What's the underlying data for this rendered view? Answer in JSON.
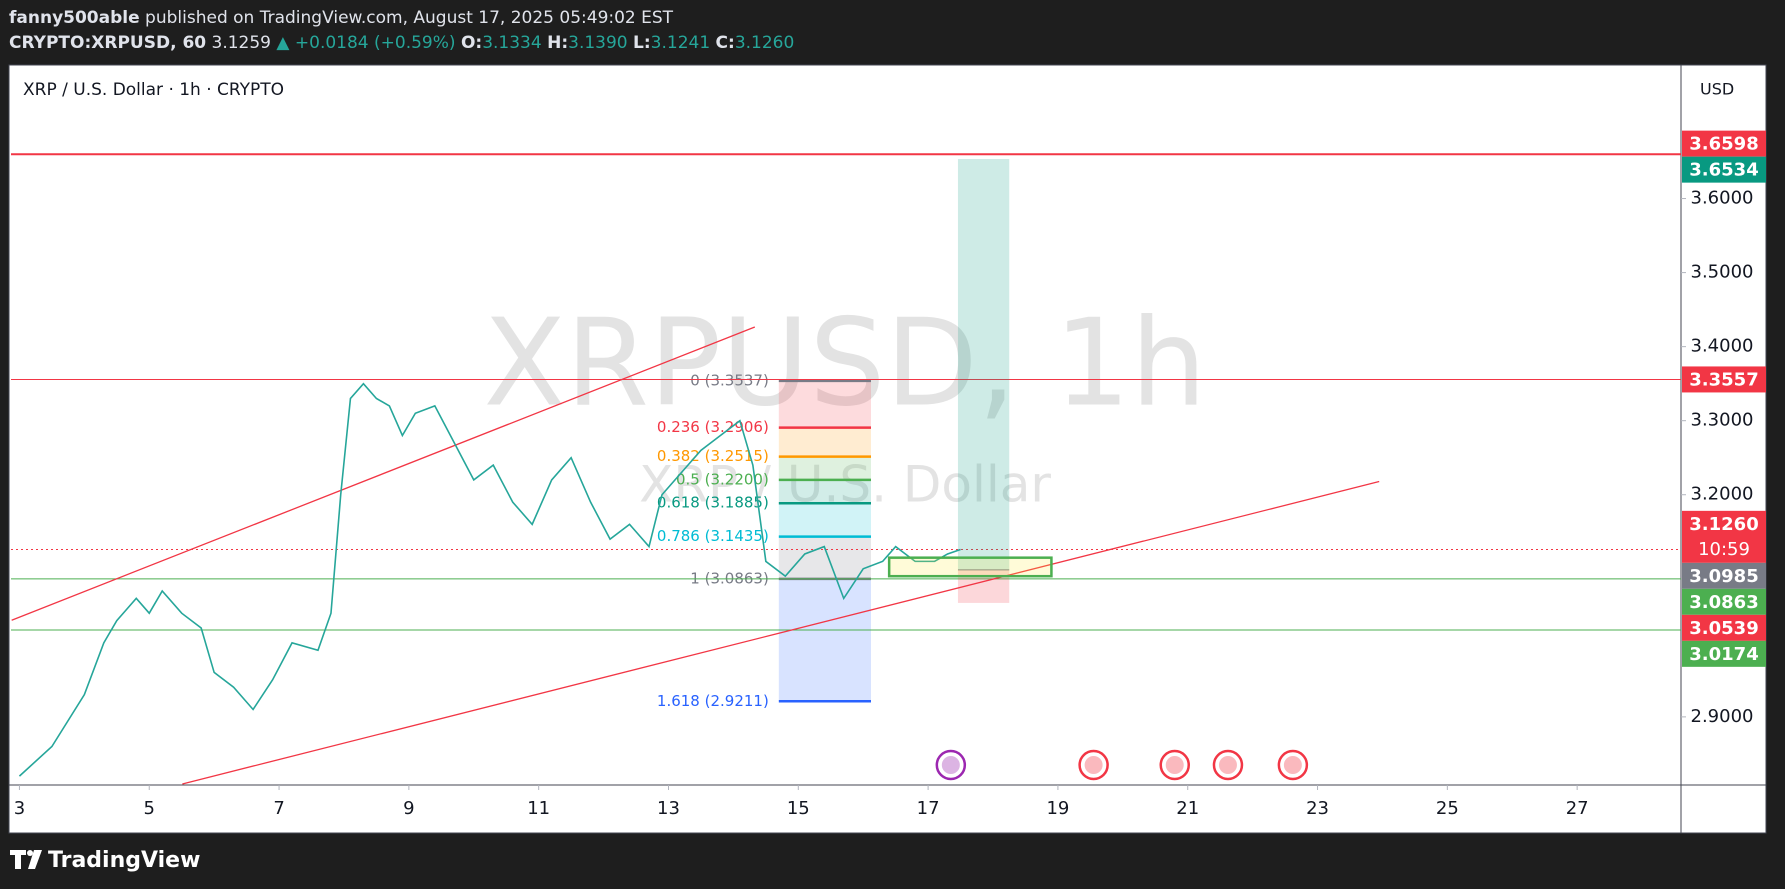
{
  "header": {
    "publisher": "fanny500able",
    "published": "published on TradingView.com, August 17, 2025 05:49:02 EST",
    "symbol": "CRYPTO:XRPUSD, 60",
    "last": "3.1259",
    "arrow": "▲",
    "change": "+0.0184 (+0.59%)",
    "o_label": "O:",
    "o": "3.1334",
    "h_label": "H:",
    "h": "3.1390",
    "l_label": "L:",
    "l": "3.1241",
    "c_label": "C:",
    "c": "3.1260"
  },
  "chart_data": {
    "type": "line",
    "title": "XRP / U.S. Dollar · 1h · CRYPTO",
    "watermark": "XRPUSD, 1h",
    "watermark_sub": "XRP / U.S. Dollar",
    "currency": "USD",
    "x": [
      3.0,
      3.5,
      4.0,
      4.3,
      4.5,
      4.8,
      5.0,
      5.2,
      5.5,
      5.8,
      6.0,
      6.3,
      6.6,
      6.9,
      7.2,
      7.6,
      7.8,
      7.95,
      8.1,
      8.3,
      8.5,
      8.7,
      8.9,
      9.1,
      9.4,
      9.7,
      10.0,
      10.3,
      10.6,
      10.9,
      11.2,
      11.5,
      11.8,
      12.1,
      12.4,
      12.7,
      12.9,
      13.2,
      13.5,
      13.8,
      14.1,
      14.3,
      14.5,
      14.8,
      15.1,
      15.4,
      15.7,
      16.0,
      16.3,
      16.5,
      16.8,
      17.1,
      17.3,
      17.5
    ],
    "series": [
      {
        "color": "#26a69a",
        "values": [
          2.82,
          2.86,
          2.93,
          3.0,
          3.03,
          3.06,
          3.04,
          3.07,
          3.04,
          3.02,
          2.96,
          2.94,
          2.91,
          2.95,
          3.0,
          2.99,
          3.04,
          3.2,
          3.33,
          3.35,
          3.33,
          3.32,
          3.28,
          3.31,
          3.32,
          3.27,
          3.22,
          3.24,
          3.19,
          3.16,
          3.22,
          3.25,
          3.19,
          3.14,
          3.16,
          3.13,
          3.2,
          3.23,
          3.26,
          3.28,
          3.3,
          3.24,
          3.11,
          3.09,
          3.12,
          3.13,
          3.06,
          3.1,
          3.11,
          3.13,
          3.11,
          3.11,
          3.12,
          3.126
        ]
      }
    ],
    "xlim": [
      2.87,
      28.6
    ],
    "xticks": [
      3,
      5,
      7,
      9,
      11,
      13,
      15,
      17,
      19,
      21,
      23,
      25,
      27
    ],
    "ylim": [
      2.808,
      3.779
    ],
    "yticks": [
      {
        "value": 2.9,
        "label": "2.9000"
      },
      {
        "value": 3.2,
        "label": "3.2000"
      },
      {
        "value": 3.3,
        "label": "3.3000"
      },
      {
        "value": 3.4,
        "label": "3.4000"
      },
      {
        "value": 3.5,
        "label": "3.5000"
      },
      {
        "value": 3.6,
        "label": "3.6000"
      }
    ],
    "price_tags": [
      {
        "value": 3.6598,
        "label": "3.6598",
        "color": "#f23645",
        "line": "solid",
        "line_width": 2
      },
      {
        "value": 3.6534,
        "label": "3.6534",
        "color": "#089981"
      },
      {
        "value": 3.3557,
        "label": "3.3557",
        "color": "#f23645",
        "line": "solid",
        "line_width": 1
      },
      {
        "value": 3.126,
        "label": "3.1260",
        "color": "#f23645",
        "line": "dotted",
        "line_width": 1,
        "countdown": "10:59"
      },
      {
        "value": 3.0985,
        "label": "3.0985",
        "color": "#787b86"
      },
      {
        "value": 3.0863,
        "label": "3.0863",
        "color": "#4caf50",
        "line": "solid",
        "line_width": 1
      },
      {
        "value": 3.0539,
        "label": "3.0539",
        "color": "#f23645"
      },
      {
        "value": 3.0174,
        "label": "3.0174",
        "color": "#4caf50",
        "line": "solid",
        "line_width": 1
      }
    ],
    "fib": {
      "x": [
        14.7,
        16.12
      ],
      "levels": [
        {
          "value": 3.3537,
          "label": "0 (3.3537)",
          "color": "#787b86"
        },
        {
          "value": 3.2906,
          "label": "0.236 (3.2906)",
          "color": "#f23645"
        },
        {
          "value": 3.2515,
          "label": "0.382 (3.2515)",
          "color": "#ff9800"
        },
        {
          "value": 3.22,
          "label": "0.5 (3.2200)",
          "color": "#4caf50"
        },
        {
          "value": 3.1885,
          "label": "0.618 (3.1885)",
          "color": "#089981"
        },
        {
          "value": 3.1435,
          "label": "0.786 (3.1435)",
          "color": "#00bcd4"
        },
        {
          "value": 3.0863,
          "label": "1 (3.0863)",
          "color": "#787b86"
        },
        {
          "value": 2.9211,
          "label": "1.618 (2.9211)",
          "color": "#2962ff"
        }
      ]
    },
    "position": {
      "x": [
        17.46,
        18.25
      ],
      "target": 3.6534,
      "entry": 3.0985,
      "stop": 3.0539
    },
    "box": {
      "x": [
        16.4,
        18.9
      ],
      "y": [
        3.09,
        3.115
      ],
      "color": "#4caf50"
    },
    "trendlines": [
      {
        "x": [
          2.88,
          14.33
        ],
        "y": [
          3.0305,
          3.4265
        ],
        "color": "#f23645"
      },
      {
        "x": [
          5.51,
          23.95
        ],
        "y": [
          2.8094,
          3.2178
        ],
        "color": "#f23645"
      }
    ]
  },
  "footer": {
    "brand": "TradingView"
  }
}
